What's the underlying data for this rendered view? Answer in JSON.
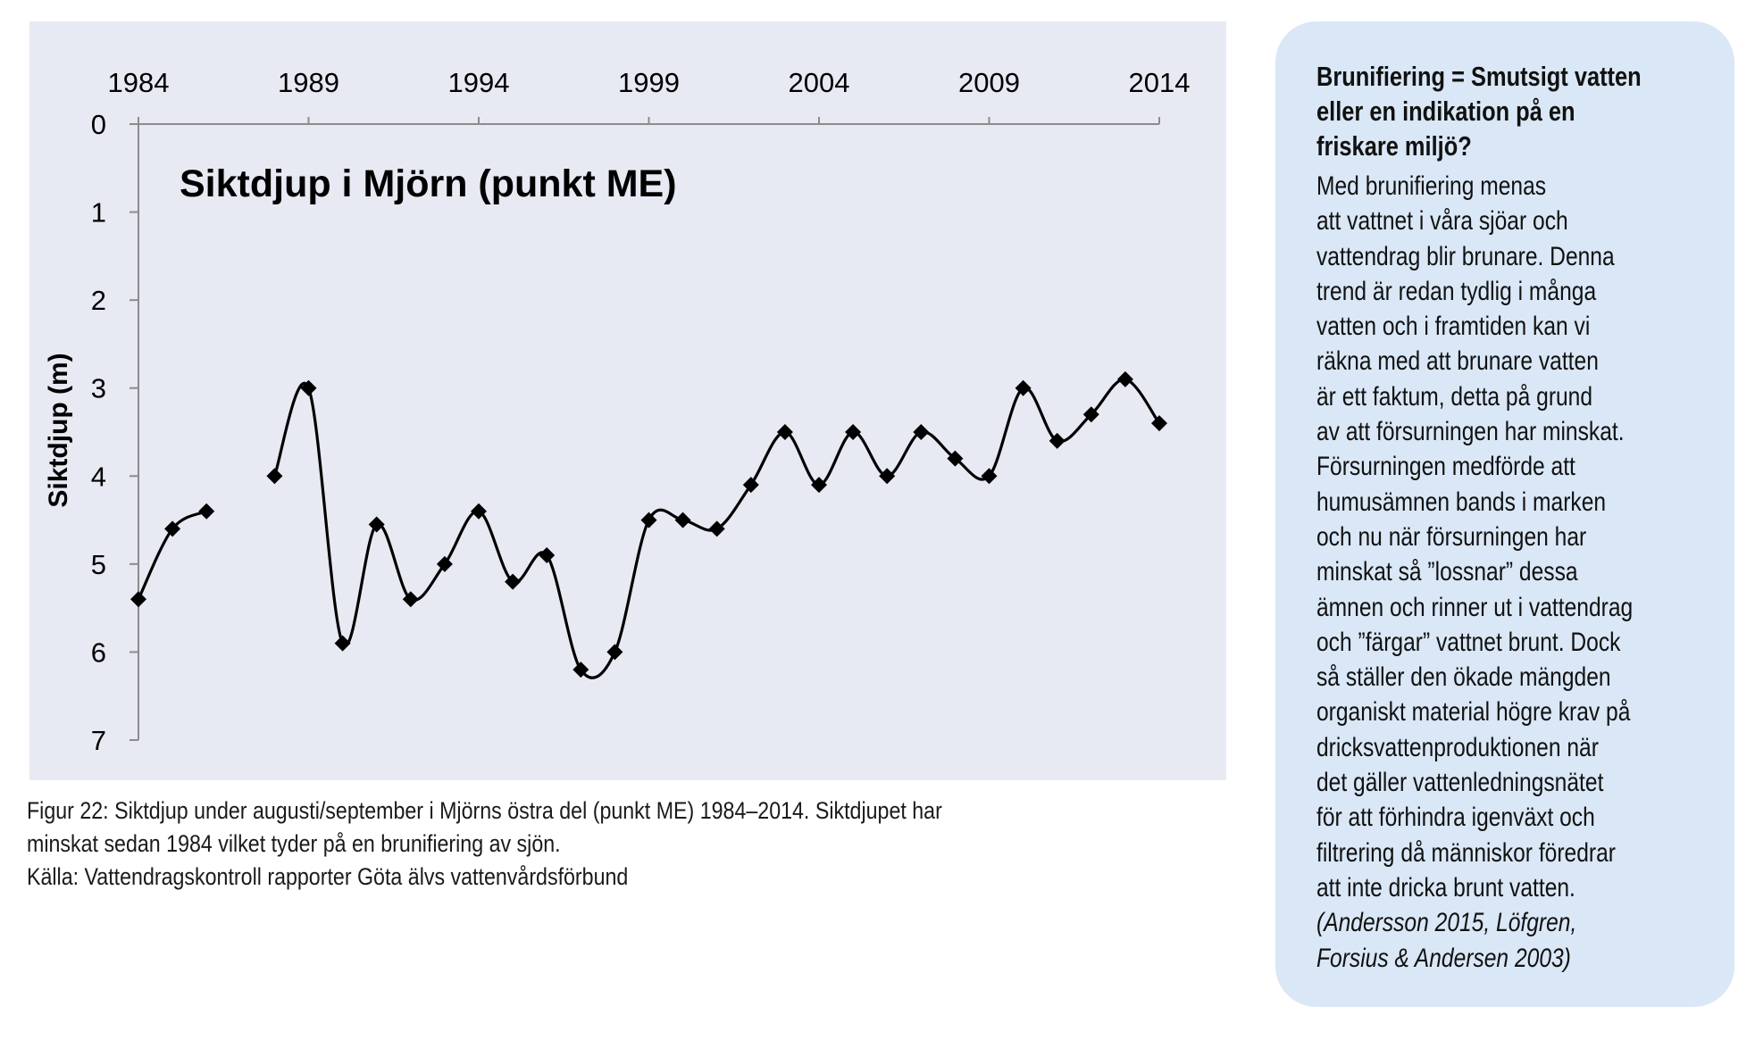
{
  "chart_data": {
    "type": "line",
    "title": "Siktdjup i Mjörn (punkt ME)",
    "ylabel": "Siktdjup (m)",
    "xlabel": "",
    "x_ticks": [
      "1984",
      "1989",
      "1994",
      "1999",
      "2004",
      "2009",
      "2014"
    ],
    "x_tick_values": [
      1984,
      1989,
      1994,
      1999,
      2004,
      2009,
      2014
    ],
    "y_ticks": [
      "0",
      "1",
      "2",
      "3",
      "4",
      "5",
      "6",
      "7"
    ],
    "y_tick_values": [
      0,
      1,
      2,
      3,
      4,
      5,
      6,
      7
    ],
    "xlim": [
      1984,
      2014
    ],
    "ylim": [
      0,
      7
    ],
    "y_inverted": true,
    "x_axis_position": "top",
    "grid": false,
    "marker": "diamond",
    "line_style": "smooth",
    "colors": {
      "series": "#000000",
      "background": "#e7e9f3",
      "axis": "#8c8c8c"
    },
    "segments": [
      [
        {
          "x": 1984,
          "y": 5.4
        },
        {
          "x": 1985,
          "y": 4.6
        },
        {
          "x": 1986,
          "y": 4.4
        }
      ],
      [
        {
          "x": 1988,
          "y": 4.0
        },
        {
          "x": 1989,
          "y": 3.0
        },
        {
          "x": 1990,
          "y": 5.9
        },
        {
          "x": 1991,
          "y": 4.55
        },
        {
          "x": 1992,
          "y": 5.4
        },
        {
          "x": 1993,
          "y": 5.0
        },
        {
          "x": 1994,
          "y": 4.4
        },
        {
          "x": 1995,
          "y": 5.2
        },
        {
          "x": 1996,
          "y": 4.9
        },
        {
          "x": 1997,
          "y": 6.2
        },
        {
          "x": 1998,
          "y": 6.0
        },
        {
          "x": 1999,
          "y": 4.5
        },
        {
          "x": 2000,
          "y": 4.5
        },
        {
          "x": 2001,
          "y": 4.6
        },
        {
          "x": 2002,
          "y": 4.1
        },
        {
          "x": 2003,
          "y": 3.5
        },
        {
          "x": 2004,
          "y": 4.1
        },
        {
          "x": 2005,
          "y": 3.5
        },
        {
          "x": 2006,
          "y": 4.0
        },
        {
          "x": 2007,
          "y": 3.5
        },
        {
          "x": 2008,
          "y": 3.8
        },
        {
          "x": 2009,
          "y": 4.0
        },
        {
          "x": 2010,
          "y": 3.0
        },
        {
          "x": 2011,
          "y": 3.6
        },
        {
          "x": 2012,
          "y": 3.3
        },
        {
          "x": 2013,
          "y": 2.9
        },
        {
          "x": 2014,
          "y": 3.4
        }
      ]
    ]
  },
  "caption": {
    "line1": "Figur 22: Siktdjup under augusti/september i Mjörns östra del (punkt ME) 1984–2014. Siktdjupet har",
    "line2": "minskat sedan 1984 vilket tyder på en brunifiering av sjön.",
    "line3": "Källa: Vattendragskontroll rapporter Göta älvs vattenvårdsförbund"
  },
  "info_box": {
    "heading_lines": [
      "Brunifiering = Smutsigt vatten",
      "eller en indikation på en",
      "friskare miljö?"
    ],
    "body_lines": [
      "Med brunifiering menas",
      "att vattnet i våra sjöar och",
      "vattendrag blir brunare. Denna",
      "trend är redan tydlig i många",
      "vatten och i framtiden kan vi",
      "räkna med att brunare vatten",
      "är ett faktum, detta på grund",
      "av att försurningen har minskat.",
      "Försurningen medförde att",
      "humusämnen bands i marken",
      "och nu när försurningen har",
      "minskat så ”lossnar” dessa",
      "ämnen och rinner ut i vattendrag",
      "och ”färgar” vattnet brunt. Dock",
      "så ställer den ökade mängden",
      "organiskt material högre krav på",
      "dricksvattenproduktionen när",
      "det gäller vattenledningsnätet",
      "för att förhindra igenväxt och",
      "filtrering då människor föredrar",
      "att inte dricka brunt vatten."
    ],
    "source_lines": [
      "(Andersson 2015, Löfgren,",
      "Forsius & Andersen 2003)"
    ]
  }
}
